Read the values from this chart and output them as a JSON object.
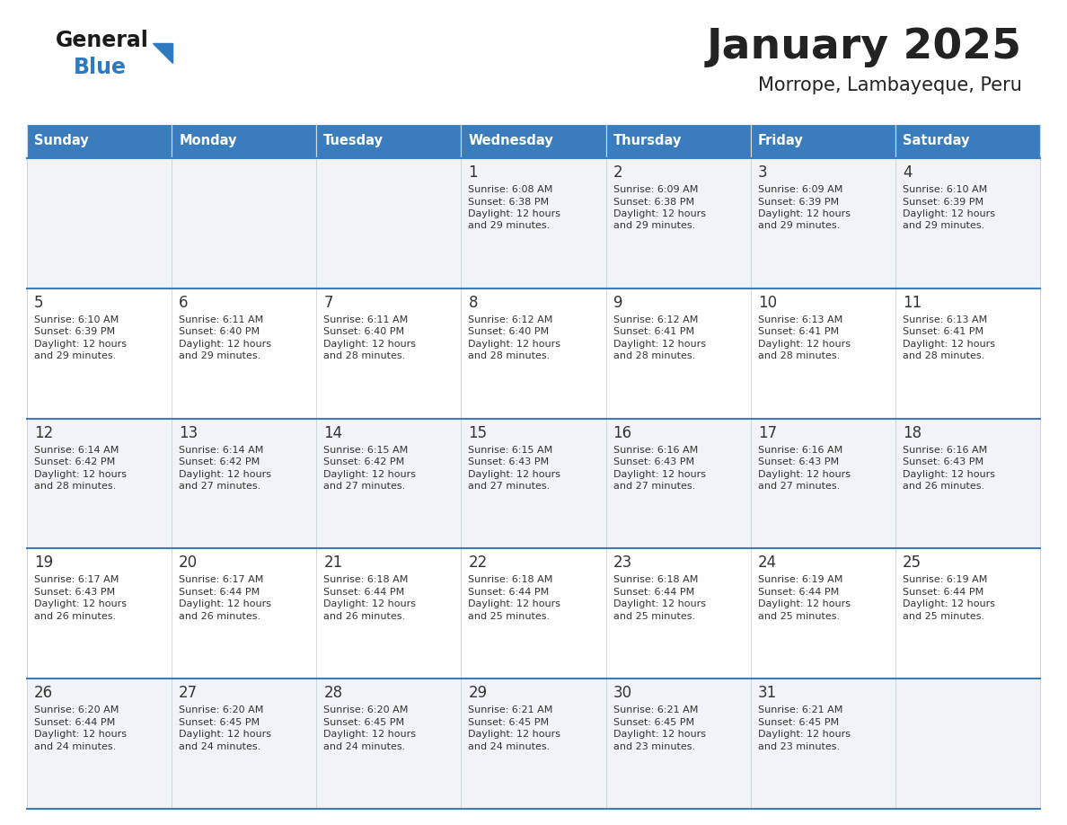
{
  "title": "January 2025",
  "subtitle": "Morrope, Lambayeque, Peru",
  "days_of_week": [
    "Sunday",
    "Monday",
    "Tuesday",
    "Wednesday",
    "Thursday",
    "Friday",
    "Saturday"
  ],
  "header_bg": "#3a7dbf",
  "header_text": "#ffffff",
  "row_bg_odd": "#f0f4f8",
  "row_bg_even": "#ffffff",
  "cell_text_color": "#333333",
  "day_number_color": "#333333",
  "border_color": "#3a7dbf",
  "title_color": "#222222",
  "subtitle_color": "#222222",
  "logo_general_color": "#1a1a1a",
  "logo_blue_color": "#2e7abf",
  "logo_triangle_color": "#2e7abf",
  "calendar": [
    [
      {
        "day": null,
        "sunrise": null,
        "sunset": null,
        "daylight": null
      },
      {
        "day": null,
        "sunrise": null,
        "sunset": null,
        "daylight": null
      },
      {
        "day": null,
        "sunrise": null,
        "sunset": null,
        "daylight": null
      },
      {
        "day": 1,
        "sunrise": "6:08 AM",
        "sunset": "6:38 PM",
        "daylight": "12 hours and 29 minutes."
      },
      {
        "day": 2,
        "sunrise": "6:09 AM",
        "sunset": "6:38 PM",
        "daylight": "12 hours and 29 minutes."
      },
      {
        "day": 3,
        "sunrise": "6:09 AM",
        "sunset": "6:39 PM",
        "daylight": "12 hours and 29 minutes."
      },
      {
        "day": 4,
        "sunrise": "6:10 AM",
        "sunset": "6:39 PM",
        "daylight": "12 hours and 29 minutes."
      }
    ],
    [
      {
        "day": 5,
        "sunrise": "6:10 AM",
        "sunset": "6:39 PM",
        "daylight": "12 hours and 29 minutes."
      },
      {
        "day": 6,
        "sunrise": "6:11 AM",
        "sunset": "6:40 PM",
        "daylight": "12 hours and 29 minutes."
      },
      {
        "day": 7,
        "sunrise": "6:11 AM",
        "sunset": "6:40 PM",
        "daylight": "12 hours and 28 minutes."
      },
      {
        "day": 8,
        "sunrise": "6:12 AM",
        "sunset": "6:40 PM",
        "daylight": "12 hours and 28 minutes."
      },
      {
        "day": 9,
        "sunrise": "6:12 AM",
        "sunset": "6:41 PM",
        "daylight": "12 hours and 28 minutes."
      },
      {
        "day": 10,
        "sunrise": "6:13 AM",
        "sunset": "6:41 PM",
        "daylight": "12 hours and 28 minutes."
      },
      {
        "day": 11,
        "sunrise": "6:13 AM",
        "sunset": "6:41 PM",
        "daylight": "12 hours and 28 minutes."
      }
    ],
    [
      {
        "day": 12,
        "sunrise": "6:14 AM",
        "sunset": "6:42 PM",
        "daylight": "12 hours and 28 minutes."
      },
      {
        "day": 13,
        "sunrise": "6:14 AM",
        "sunset": "6:42 PM",
        "daylight": "12 hours and 27 minutes."
      },
      {
        "day": 14,
        "sunrise": "6:15 AM",
        "sunset": "6:42 PM",
        "daylight": "12 hours and 27 minutes."
      },
      {
        "day": 15,
        "sunrise": "6:15 AM",
        "sunset": "6:43 PM",
        "daylight": "12 hours and 27 minutes."
      },
      {
        "day": 16,
        "sunrise": "6:16 AM",
        "sunset": "6:43 PM",
        "daylight": "12 hours and 27 minutes."
      },
      {
        "day": 17,
        "sunrise": "6:16 AM",
        "sunset": "6:43 PM",
        "daylight": "12 hours and 27 minutes."
      },
      {
        "day": 18,
        "sunrise": "6:16 AM",
        "sunset": "6:43 PM",
        "daylight": "12 hours and 26 minutes."
      }
    ],
    [
      {
        "day": 19,
        "sunrise": "6:17 AM",
        "sunset": "6:43 PM",
        "daylight": "12 hours and 26 minutes."
      },
      {
        "day": 20,
        "sunrise": "6:17 AM",
        "sunset": "6:44 PM",
        "daylight": "12 hours and 26 minutes."
      },
      {
        "day": 21,
        "sunrise": "6:18 AM",
        "sunset": "6:44 PM",
        "daylight": "12 hours and 26 minutes."
      },
      {
        "day": 22,
        "sunrise": "6:18 AM",
        "sunset": "6:44 PM",
        "daylight": "12 hours and 25 minutes."
      },
      {
        "day": 23,
        "sunrise": "6:18 AM",
        "sunset": "6:44 PM",
        "daylight": "12 hours and 25 minutes."
      },
      {
        "day": 24,
        "sunrise": "6:19 AM",
        "sunset": "6:44 PM",
        "daylight": "12 hours and 25 minutes."
      },
      {
        "day": 25,
        "sunrise": "6:19 AM",
        "sunset": "6:44 PM",
        "daylight": "12 hours and 25 minutes."
      }
    ],
    [
      {
        "day": 26,
        "sunrise": "6:20 AM",
        "sunset": "6:44 PM",
        "daylight": "12 hours and 24 minutes."
      },
      {
        "day": 27,
        "sunrise": "6:20 AM",
        "sunset": "6:45 PM",
        "daylight": "12 hours and 24 minutes."
      },
      {
        "day": 28,
        "sunrise": "6:20 AM",
        "sunset": "6:45 PM",
        "daylight": "12 hours and 24 minutes."
      },
      {
        "day": 29,
        "sunrise": "6:21 AM",
        "sunset": "6:45 PM",
        "daylight": "12 hours and 24 minutes."
      },
      {
        "day": 30,
        "sunrise": "6:21 AM",
        "sunset": "6:45 PM",
        "daylight": "12 hours and 23 minutes."
      },
      {
        "day": 31,
        "sunrise": "6:21 AM",
        "sunset": "6:45 PM",
        "daylight": "12 hours and 23 minutes."
      },
      {
        "day": null,
        "sunrise": null,
        "sunset": null,
        "daylight": null
      }
    ]
  ]
}
